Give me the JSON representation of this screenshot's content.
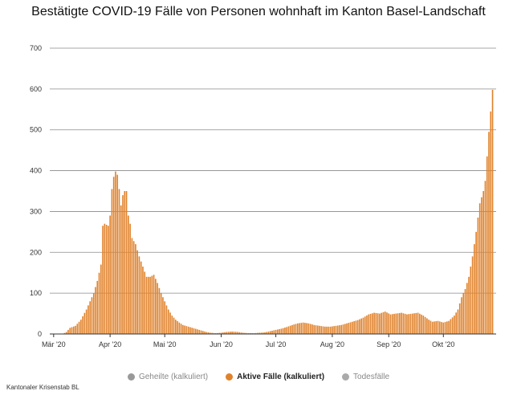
{
  "page": {
    "title": "Bestätigte COVID-19 Fälle von Personen wohnhaft im Kanton Basel-Landschaft"
  },
  "credit": "Kantonaler Krisenstab BL",
  "legend": {
    "items": [
      {
        "label": "Geheilte (kalkuliert)",
        "color": "#999999",
        "active": false
      },
      {
        "label": "Aktive Fälle (kalkuliert)",
        "color": "#e0822b",
        "active": true
      },
      {
        "label": "Todesfälle",
        "color": "#aaaaaa",
        "active": false
      }
    ]
  },
  "chart_data": {
    "type": "bar",
    "title": "Bestätigte COVID-19 Fälle von Personen wohnhaft im Kanton Basel-Landschaft",
    "xlabel": "",
    "ylabel": "",
    "ylim": [
      0,
      700
    ],
    "y_ticks": [
      0,
      100,
      200,
      300,
      400,
      500,
      600,
      700
    ],
    "x_ticks": [
      {
        "label": "Mär '20",
        "index": 0
      },
      {
        "label": "Apr '20",
        "index": 31
      },
      {
        "label": "Mai '20",
        "index": 61
      },
      {
        "label": "Jun '20",
        "index": 92
      },
      {
        "label": "Jul '20",
        "index": 122
      },
      {
        "label": "Aug '20",
        "index": 153
      },
      {
        "label": "Sep '20",
        "index": 184
      },
      {
        "label": "Okt '20",
        "index": 214
      }
    ],
    "grid": true,
    "legend_position": "bottom",
    "bar_color": "#e0822b",
    "series": [
      {
        "name": "Aktive Fälle (kalkuliert)",
        "anchors": [
          [
            0,
            0
          ],
          [
            5,
            0
          ],
          [
            7,
            5
          ],
          [
            9,
            15
          ],
          [
            12,
            20
          ],
          [
            15,
            35
          ],
          [
            18,
            60
          ],
          [
            20,
            80
          ],
          [
            22,
            100
          ],
          [
            24,
            130
          ],
          [
            26,
            170
          ],
          [
            27,
            265
          ],
          [
            28,
            270
          ],
          [
            30,
            265
          ],
          [
            31,
            290
          ],
          [
            32,
            355
          ],
          [
            33,
            385
          ],
          [
            34,
            398
          ],
          [
            35,
            390
          ],
          [
            36,
            355
          ],
          [
            37,
            315
          ],
          [
            38,
            340
          ],
          [
            39,
            350
          ],
          [
            40,
            350
          ],
          [
            41,
            290
          ],
          [
            42,
            270
          ],
          [
            43,
            235
          ],
          [
            45,
            220
          ],
          [
            47,
            190
          ],
          [
            49,
            165
          ],
          [
            51,
            140
          ],
          [
            53,
            140
          ],
          [
            55,
            145
          ],
          [
            57,
            125
          ],
          [
            59,
            100
          ],
          [
            61,
            80
          ],
          [
            63,
            60
          ],
          [
            65,
            45
          ],
          [
            67,
            35
          ],
          [
            69,
            28
          ],
          [
            71,
            22
          ],
          [
            74,
            18
          ],
          [
            77,
            14
          ],
          [
            80,
            10
          ],
          [
            83,
            6
          ],
          [
            86,
            3
          ],
          [
            89,
            2
          ],
          [
            92,
            3
          ],
          [
            95,
            5
          ],
          [
            98,
            6
          ],
          [
            101,
            5
          ],
          [
            104,
            3
          ],
          [
            107,
            2
          ],
          [
            110,
            2
          ],
          [
            113,
            3
          ],
          [
            116,
            4
          ],
          [
            119,
            7
          ],
          [
            122,
            10
          ],
          [
            125,
            13
          ],
          [
            128,
            17
          ],
          [
            131,
            22
          ],
          [
            134,
            26
          ],
          [
            137,
            28
          ],
          [
            140,
            26
          ],
          [
            143,
            22
          ],
          [
            146,
            20
          ],
          [
            149,
            18
          ],
          [
            152,
            18
          ],
          [
            155,
            20
          ],
          [
            158,
            22
          ],
          [
            161,
            26
          ],
          [
            164,
            30
          ],
          [
            167,
            34
          ],
          [
            170,
            40
          ],
          [
            173,
            48
          ],
          [
            176,
            52
          ],
          [
            179,
            50
          ],
          [
            182,
            55
          ],
          [
            185,
            48
          ],
          [
            188,
            50
          ],
          [
            191,
            52
          ],
          [
            194,
            48
          ],
          [
            197,
            50
          ],
          [
            200,
            52
          ],
          [
            203,
            45
          ],
          [
            206,
            35
          ],
          [
            208,
            30
          ],
          [
            211,
            32
          ],
          [
            214,
            28
          ],
          [
            217,
            32
          ],
          [
            220,
            45
          ],
          [
            222,
            60
          ],
          [
            224,
            90
          ],
          [
            226,
            110
          ],
          [
            228,
            140
          ],
          [
            230,
            190
          ],
          [
            232,
            250
          ],
          [
            234,
            320
          ],
          [
            236,
            350
          ],
          [
            237,
            375
          ],
          [
            238,
            435
          ],
          [
            239,
            495
          ],
          [
            240,
            545
          ],
          [
            241,
            598
          ]
        ]
      }
    ]
  }
}
